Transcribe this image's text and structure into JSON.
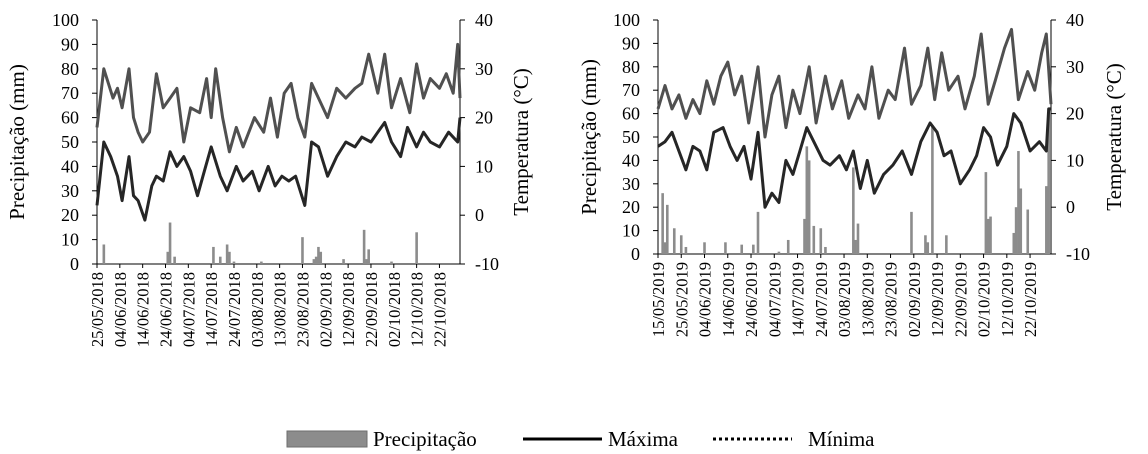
{
  "legend": {
    "entries": [
      {
        "label": "Precipitação",
        "kind": "bar",
        "color": "#8c8c8c"
      },
      {
        "label": "Máxima",
        "kind": "line",
        "color": "#000000"
      },
      {
        "label": "Mínima",
        "kind": "dotted-line",
        "color": "#000000"
      }
    ]
  },
  "chart_data": [
    {
      "type": "bar+line",
      "ylabel": "Precipitação (mm)",
      "y2label": "Temperatura (°C)",
      "ylim": [
        0,
        100
      ],
      "y2lim": [
        -10,
        40
      ],
      "yticks": [
        "0",
        "10",
        "20",
        "30",
        "40",
        "50",
        "60",
        "70",
        "80",
        "90",
        "100"
      ],
      "y2ticks": [
        "-10",
        "0",
        "10",
        "20",
        "30",
        "40"
      ],
      "x_start": "2018-05-25",
      "x_end": "2018-10-31",
      "xticks": [
        "25/05/2018",
        "04/06/2018",
        "14/06/2018",
        "24/06/2018",
        "04/07/2018",
        "14/07/2018",
        "24/07/2018",
        "03/08/2018",
        "13/08/2018",
        "23/08/2018",
        "02/09/2018",
        "12/09/2018",
        "22/09/2018",
        "02/10/2018",
        "12/10/2018",
        "22/10/2018"
      ],
      "colors": {
        "precip": "#8c8c8c",
        "max": "#505050",
        "min": "#262626"
      },
      "precipitation": [
        {
          "date": "2018-05-28",
          "value": 8
        },
        {
          "date": "2018-06-25",
          "value": 5
        },
        {
          "date": "2018-06-26",
          "value": 17
        },
        {
          "date": "2018-06-28",
          "value": 3
        },
        {
          "date": "2018-07-15",
          "value": 7
        },
        {
          "date": "2018-07-18",
          "value": 3
        },
        {
          "date": "2018-07-21",
          "value": 8
        },
        {
          "date": "2018-07-22",
          "value": 5
        },
        {
          "date": "2018-07-24",
          "value": 1
        },
        {
          "date": "2018-08-05",
          "value": 1
        },
        {
          "date": "2018-08-23",
          "value": 11
        },
        {
          "date": "2018-08-28",
          "value": 2
        },
        {
          "date": "2018-08-29",
          "value": 3
        },
        {
          "date": "2018-08-30",
          "value": 7
        },
        {
          "date": "2018-08-31",
          "value": 5
        },
        {
          "date": "2018-09-10",
          "value": 2
        },
        {
          "date": "2018-09-19",
          "value": 14
        },
        {
          "date": "2018-09-20",
          "value": 2
        },
        {
          "date": "2018-09-21",
          "value": 6
        },
        {
          "date": "2018-10-01",
          "value": 1
        },
        {
          "date": "2018-10-12",
          "value": 13
        }
      ],
      "temp_max": [
        [
          "2018-05-25",
          18
        ],
        [
          "2018-05-28",
          30
        ],
        [
          "2018-05-30",
          27
        ],
        [
          "2018-06-01",
          24
        ],
        [
          "2018-06-03",
          26
        ],
        [
          "2018-06-05",
          22
        ],
        [
          "2018-06-08",
          30
        ],
        [
          "2018-06-10",
          20
        ],
        [
          "2018-06-12",
          17
        ],
        [
          "2018-06-14",
          15
        ],
        [
          "2018-06-17",
          17
        ],
        [
          "2018-06-20",
          29
        ],
        [
          "2018-06-23",
          22
        ],
        [
          "2018-06-26",
          24
        ],
        [
          "2018-06-29",
          26
        ],
        [
          "2018-07-02",
          15
        ],
        [
          "2018-07-05",
          22
        ],
        [
          "2018-07-09",
          21
        ],
        [
          "2018-07-12",
          28
        ],
        [
          "2018-07-14",
          20
        ],
        [
          "2018-07-16",
          30
        ],
        [
          "2018-07-19",
          20
        ],
        [
          "2018-07-22",
          13
        ],
        [
          "2018-07-25",
          18
        ],
        [
          "2018-07-28",
          14
        ],
        [
          "2018-08-02",
          20
        ],
        [
          "2018-08-06",
          17
        ],
        [
          "2018-08-09",
          24
        ],
        [
          "2018-08-12",
          16
        ],
        [
          "2018-08-15",
          25
        ],
        [
          "2018-08-18",
          27
        ],
        [
          "2018-08-21",
          20
        ],
        [
          "2018-08-24",
          16
        ],
        [
          "2018-08-27",
          27
        ],
        [
          "2018-08-30",
          24
        ],
        [
          "2018-09-03",
          20
        ],
        [
          "2018-09-07",
          26
        ],
        [
          "2018-09-11",
          24
        ],
        [
          "2018-09-15",
          26
        ],
        [
          "2018-09-18",
          27
        ],
        [
          "2018-09-21",
          33
        ],
        [
          "2018-09-25",
          25
        ],
        [
          "2018-09-28",
          33
        ],
        [
          "2018-10-01",
          22
        ],
        [
          "2018-10-05",
          28
        ],
        [
          "2018-10-09",
          21
        ],
        [
          "2018-10-12",
          31
        ],
        [
          "2018-10-15",
          24
        ],
        [
          "2018-10-18",
          28
        ],
        [
          "2018-10-22",
          26
        ],
        [
          "2018-10-25",
          29
        ],
        [
          "2018-10-28",
          25
        ],
        [
          "2018-10-30",
          35
        ],
        [
          "2018-10-31",
          24
        ]
      ],
      "temp_min": [
        [
          "2018-05-25",
          2
        ],
        [
          "2018-05-28",
          15
        ],
        [
          "2018-05-31",
          12
        ],
        [
          "2018-06-03",
          8
        ],
        [
          "2018-06-05",
          3
        ],
        [
          "2018-06-08",
          12
        ],
        [
          "2018-06-10",
          4
        ],
        [
          "2018-06-12",
          3
        ],
        [
          "2018-06-15",
          -1
        ],
        [
          "2018-06-18",
          6
        ],
        [
          "2018-06-20",
          8
        ],
        [
          "2018-06-23",
          7
        ],
        [
          "2018-06-26",
          13
        ],
        [
          "2018-06-29",
          10
        ],
        [
          "2018-07-02",
          12
        ],
        [
          "2018-07-05",
          9
        ],
        [
          "2018-07-08",
          4
        ],
        [
          "2018-07-11",
          9
        ],
        [
          "2018-07-14",
          14
        ],
        [
          "2018-07-18",
          8
        ],
        [
          "2018-07-21",
          5
        ],
        [
          "2018-07-25",
          10
        ],
        [
          "2018-07-28",
          7
        ],
        [
          "2018-08-01",
          9
        ],
        [
          "2018-08-04",
          5
        ],
        [
          "2018-08-08",
          10
        ],
        [
          "2018-08-11",
          6
        ],
        [
          "2018-08-14",
          8
        ],
        [
          "2018-08-17",
          7
        ],
        [
          "2018-08-20",
          8
        ],
        [
          "2018-08-24",
          2
        ],
        [
          "2018-08-27",
          15
        ],
        [
          "2018-08-30",
          14
        ],
        [
          "2018-09-03",
          8
        ],
        [
          "2018-09-07",
          12
        ],
        [
          "2018-09-11",
          15
        ],
        [
          "2018-09-15",
          14
        ],
        [
          "2018-09-18",
          16
        ],
        [
          "2018-09-22",
          15
        ],
        [
          "2018-09-25",
          17
        ],
        [
          "2018-09-28",
          19
        ],
        [
          "2018-10-01",
          15
        ],
        [
          "2018-10-05",
          12
        ],
        [
          "2018-10-08",
          18
        ],
        [
          "2018-10-12",
          14
        ],
        [
          "2018-10-15",
          17
        ],
        [
          "2018-10-18",
          15
        ],
        [
          "2018-10-22",
          14
        ],
        [
          "2018-10-26",
          17
        ],
        [
          "2018-10-30",
          15
        ],
        [
          "2018-10-31",
          20
        ]
      ]
    },
    {
      "type": "bar+line",
      "ylabel": "Precipitação (mm)",
      "y2label": "Temperatura (°C)",
      "ylim": [
        0,
        100
      ],
      "y2lim": [
        -10,
        40
      ],
      "yticks": [
        "0",
        "10",
        "20",
        "30",
        "40",
        "50",
        "60",
        "70",
        "80",
        "90",
        "100"
      ],
      "y2ticks": [
        "-10",
        "0",
        "10",
        "20",
        "30",
        "40"
      ],
      "x_start": "2019-05-15",
      "x_end": "2019-10-31",
      "xticks": [
        "15/05/2019",
        "25/05/2019",
        "04/06/2019",
        "14/06/2019",
        "24/06/2019",
        "04/07/2019",
        "14/07/2019",
        "24/07/2019",
        "03/08/2019",
        "13/08/2019",
        "23/08/2019",
        "02/09/2019",
        "12/09/2019",
        "22/09/2019",
        "02/10/2019",
        "12/10/2019",
        "22/10/2019"
      ],
      "colors": {
        "precip": "#8c8c8c",
        "max": "#505050",
        "min": "#262626"
      },
      "precipitation": [
        {
          "date": "2019-05-17",
          "value": 26
        },
        {
          "date": "2019-05-18",
          "value": 5
        },
        {
          "date": "2019-05-19",
          "value": 21
        },
        {
          "date": "2019-05-22",
          "value": 11
        },
        {
          "date": "2019-05-25",
          "value": 8
        },
        {
          "date": "2019-05-27",
          "value": 3
        },
        {
          "date": "2019-06-04",
          "value": 5
        },
        {
          "date": "2019-06-13",
          "value": 5
        },
        {
          "date": "2019-06-20",
          "value": 4
        },
        {
          "date": "2019-06-25",
          "value": 4
        },
        {
          "date": "2019-06-27",
          "value": 18
        },
        {
          "date": "2019-07-06",
          "value": 1
        },
        {
          "date": "2019-07-10",
          "value": 6
        },
        {
          "date": "2019-07-17",
          "value": 15
        },
        {
          "date": "2019-07-18",
          "value": 46
        },
        {
          "date": "2019-07-19",
          "value": 40
        },
        {
          "date": "2019-07-21",
          "value": 12
        },
        {
          "date": "2019-07-24",
          "value": 11
        },
        {
          "date": "2019-07-26",
          "value": 3
        },
        {
          "date": "2019-08-07",
          "value": 37
        },
        {
          "date": "2019-08-08",
          "value": 6
        },
        {
          "date": "2019-08-09",
          "value": 13
        },
        {
          "date": "2019-09-01",
          "value": 18
        },
        {
          "date": "2019-09-07",
          "value": 8
        },
        {
          "date": "2019-09-08",
          "value": 5
        },
        {
          "date": "2019-09-10",
          "value": 55
        },
        {
          "date": "2019-09-16",
          "value": 8
        },
        {
          "date": "2019-10-03",
          "value": 35
        },
        {
          "date": "2019-10-04",
          "value": 15
        },
        {
          "date": "2019-10-05",
          "value": 16
        },
        {
          "date": "2019-10-15",
          "value": 9
        },
        {
          "date": "2019-10-16",
          "value": 20
        },
        {
          "date": "2019-10-17",
          "value": 44
        },
        {
          "date": "2019-10-18",
          "value": 28
        },
        {
          "date": "2019-10-21",
          "value": 19
        },
        {
          "date": "2019-10-29",
          "value": 29
        },
        {
          "date": "2019-10-30",
          "value": 62
        }
      ],
      "temp_max": [
        [
          "2019-05-15",
          21
        ],
        [
          "2019-05-18",
          26
        ],
        [
          "2019-05-21",
          21
        ],
        [
          "2019-05-24",
          24
        ],
        [
          "2019-05-27",
          19
        ],
        [
          "2019-05-30",
          23
        ],
        [
          "2019-06-02",
          20
        ],
        [
          "2019-06-05",
          27
        ],
        [
          "2019-06-08",
          22
        ],
        [
          "2019-06-11",
          28
        ],
        [
          "2019-06-14",
          31
        ],
        [
          "2019-06-17",
          24
        ],
        [
          "2019-06-20",
          28
        ],
        [
          "2019-06-23",
          18
        ],
        [
          "2019-06-27",
          30
        ],
        [
          "2019-06-30",
          15
        ],
        [
          "2019-07-03",
          24
        ],
        [
          "2019-07-06",
          28
        ],
        [
          "2019-07-09",
          17
        ],
        [
          "2019-07-12",
          25
        ],
        [
          "2019-07-15",
          20
        ],
        [
          "2019-07-19",
          30
        ],
        [
          "2019-07-22",
          18
        ],
        [
          "2019-07-26",
          28
        ],
        [
          "2019-07-29",
          21
        ],
        [
          "2019-08-02",
          27
        ],
        [
          "2019-08-05",
          19
        ],
        [
          "2019-08-09",
          24
        ],
        [
          "2019-08-12",
          21
        ],
        [
          "2019-08-15",
          30
        ],
        [
          "2019-08-18",
          19
        ],
        [
          "2019-08-22",
          25
        ],
        [
          "2019-08-25",
          23
        ],
        [
          "2019-08-29",
          34
        ],
        [
          "2019-09-01",
          22
        ],
        [
          "2019-09-05",
          26
        ],
        [
          "2019-09-08",
          34
        ],
        [
          "2019-09-11",
          23
        ],
        [
          "2019-09-14",
          33
        ],
        [
          "2019-09-17",
          25
        ],
        [
          "2019-09-21",
          28
        ],
        [
          "2019-09-24",
          21
        ],
        [
          "2019-09-28",
          28
        ],
        [
          "2019-10-01",
          37
        ],
        [
          "2019-10-04",
          22
        ],
        [
          "2019-10-07",
          27
        ],
        [
          "2019-10-11",
          34
        ],
        [
          "2019-10-14",
          38
        ],
        [
          "2019-10-17",
          23
        ],
        [
          "2019-10-21",
          29
        ],
        [
          "2019-10-24",
          25
        ],
        [
          "2019-10-27",
          33
        ],
        [
          "2019-10-29",
          37
        ],
        [
          "2019-10-31",
          22
        ]
      ],
      "temp_min": [
        [
          "2019-05-15",
          13
        ],
        [
          "2019-05-18",
          14
        ],
        [
          "2019-05-21",
          16
        ],
        [
          "2019-05-24",
          12
        ],
        [
          "2019-05-27",
          8
        ],
        [
          "2019-05-30",
          13
        ],
        [
          "2019-06-02",
          12
        ],
        [
          "2019-06-05",
          8
        ],
        [
          "2019-06-08",
          16
        ],
        [
          "2019-06-12",
          17
        ],
        [
          "2019-06-15",
          13
        ],
        [
          "2019-06-18",
          10
        ],
        [
          "2019-06-21",
          13
        ],
        [
          "2019-06-24",
          6
        ],
        [
          "2019-06-27",
          16
        ],
        [
          "2019-06-30",
          0
        ],
        [
          "2019-07-03",
          3
        ],
        [
          "2019-07-06",
          1
        ],
        [
          "2019-07-09",
          10
        ],
        [
          "2019-07-12",
          7
        ],
        [
          "2019-07-15",
          12
        ],
        [
          "2019-07-18",
          17
        ],
        [
          "2019-07-21",
          14
        ],
        [
          "2019-07-25",
          10
        ],
        [
          "2019-07-28",
          9
        ],
        [
          "2019-08-01",
          11
        ],
        [
          "2019-08-04",
          8
        ],
        [
          "2019-08-07",
          12
        ],
        [
          "2019-08-10",
          4
        ],
        [
          "2019-08-13",
          10
        ],
        [
          "2019-08-16",
          3
        ],
        [
          "2019-08-20",
          7
        ],
        [
          "2019-08-24",
          9
        ],
        [
          "2019-08-28",
          12
        ],
        [
          "2019-09-01",
          7
        ],
        [
          "2019-09-05",
          14
        ],
        [
          "2019-09-09",
          18
        ],
        [
          "2019-09-12",
          16
        ],
        [
          "2019-09-15",
          11
        ],
        [
          "2019-09-18",
          12
        ],
        [
          "2019-09-22",
          5
        ],
        [
          "2019-09-26",
          8
        ],
        [
          "2019-09-29",
          11
        ],
        [
          "2019-10-02",
          17
        ],
        [
          "2019-10-05",
          15
        ],
        [
          "2019-10-08",
          9
        ],
        [
          "2019-10-12",
          13
        ],
        [
          "2019-10-15",
          20
        ],
        [
          "2019-10-18",
          18
        ],
        [
          "2019-10-22",
          12
        ],
        [
          "2019-10-26",
          14
        ],
        [
          "2019-10-29",
          12
        ],
        [
          "2019-10-30",
          21
        ],
        [
          "2019-10-31",
          21
        ]
      ]
    }
  ]
}
